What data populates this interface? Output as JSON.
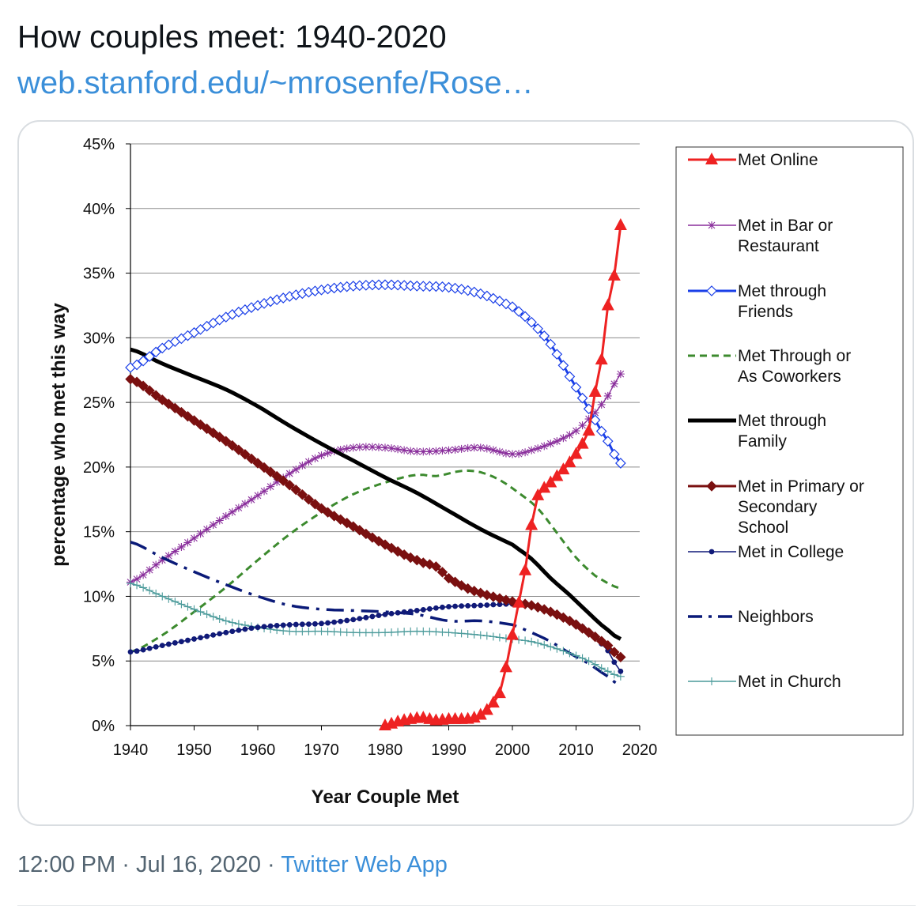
{
  "tweet": {
    "text": "How couples meet: 1940-2020",
    "link_text": "web.stanford.edu/~mrosenfe/Rose…",
    "time": "12:00 PM",
    "separator": "·",
    "date": "Jul 16, 2020",
    "source": "Twitter Web App"
  },
  "chart_data": {
    "type": "line",
    "title": "",
    "xlabel": "Year Couple Met",
    "ylabel": "percentage who met this way",
    "xlim": [
      1940,
      2020
    ],
    "ylim": [
      0,
      45
    ],
    "x_ticks": [
      "1940",
      "1950",
      "1960",
      "1970",
      "1980",
      "1990",
      "2000",
      "2010",
      "2020"
    ],
    "y_ticks": [
      "0%",
      "5%",
      "10%",
      "15%",
      "20%",
      "25%",
      "30%",
      "35%",
      "40%",
      "45%"
    ],
    "grid": "horizontal",
    "legend_position": "right",
    "series": [
      {
        "name": "Met Online",
        "color": "#ee2222",
        "style": "solid-triangle",
        "points": [
          [
            1980,
            0
          ],
          [
            1982,
            0.3
          ],
          [
            1984,
            0.5
          ],
          [
            1986,
            0.6
          ],
          [
            1988,
            0.4
          ],
          [
            1990,
            0.5
          ],
          [
            1992,
            0.5
          ],
          [
            1994,
            0.6
          ],
          [
            1996,
            1.2
          ],
          [
            1998,
            2.5
          ],
          [
            1999,
            4.5
          ],
          [
            2000,
            7
          ],
          [
            2001,
            9.5
          ],
          [
            2002,
            12
          ],
          [
            2003,
            15.5
          ],
          [
            2004,
            17.8
          ],
          [
            2006,
            18.8
          ],
          [
            2008,
            19.8
          ],
          [
            2010,
            21
          ],
          [
            2012,
            22.8
          ],
          [
            2013,
            25.8
          ],
          [
            2014,
            28.3
          ],
          [
            2015,
            32.5
          ],
          [
            2016,
            34.8
          ],
          [
            2017,
            38.7
          ]
        ]
      },
      {
        "name": "Met in Bar or Restaurant",
        "color": "#8a2f9c",
        "style": "thin-star",
        "points": [
          [
            1940,
            11.1
          ],
          [
            1945,
            12.8
          ],
          [
            1950,
            14.5
          ],
          [
            1955,
            16.2
          ],
          [
            1960,
            17.8
          ],
          [
            1965,
            19.5
          ],
          [
            1970,
            20.9
          ],
          [
            1975,
            21.5
          ],
          [
            1980,
            21.5
          ],
          [
            1985,
            21.2
          ],
          [
            1990,
            21.3
          ],
          [
            1995,
            21.5
          ],
          [
            2000,
            21.0
          ],
          [
            2003,
            21.3
          ],
          [
            2007,
            22.0
          ],
          [
            2010,
            22.8
          ],
          [
            2013,
            24.2
          ],
          [
            2015,
            25.5
          ],
          [
            2017,
            27.2
          ]
        ]
      },
      {
        "name": "Met through Friends",
        "color": "#1a3fe8",
        "style": "solid-diamond",
        "points": [
          [
            1940,
            27.7
          ],
          [
            1945,
            29.2
          ],
          [
            1950,
            30.4
          ],
          [
            1955,
            31.6
          ],
          [
            1960,
            32.5
          ],
          [
            1965,
            33.2
          ],
          [
            1970,
            33.7
          ],
          [
            1975,
            34.0
          ],
          [
            1980,
            34.1
          ],
          [
            1985,
            34.0
          ],
          [
            1990,
            33.9
          ],
          [
            1995,
            33.4
          ],
          [
            2000,
            32.4
          ],
          [
            2003,
            31.2
          ],
          [
            2006,
            29.5
          ],
          [
            2009,
            27.0
          ],
          [
            2012,
            24.5
          ],
          [
            2015,
            22.0
          ],
          [
            2017,
            20.3
          ]
        ]
      },
      {
        "name": "Met Through or As Coworkers",
        "color": "#3c8a2e",
        "style": "dashed",
        "points": [
          [
            1940,
            5.7
          ],
          [
            1945,
            7.0
          ],
          [
            1950,
            8.8
          ],
          [
            1955,
            10.7
          ],
          [
            1960,
            12.8
          ],
          [
            1965,
            14.8
          ],
          [
            1970,
            16.5
          ],
          [
            1975,
            17.9
          ],
          [
            1980,
            18.8
          ],
          [
            1985,
            19.4
          ],
          [
            1988,
            19.3
          ],
          [
            1992,
            19.7
          ],
          [
            1995,
            19.6
          ],
          [
            1998,
            19.0
          ],
          [
            2001,
            18.0
          ],
          [
            2004,
            16.8
          ],
          [
            2007,
            14.9
          ],
          [
            2010,
            13.0
          ],
          [
            2013,
            11.6
          ],
          [
            2017,
            10.6
          ]
        ]
      },
      {
        "name": "Met through Family",
        "color": "#000000",
        "style": "thick-solid",
        "points": [
          [
            1940,
            29.1
          ],
          [
            1945,
            28.0
          ],
          [
            1950,
            27.0
          ],
          [
            1955,
            26.0
          ],
          [
            1960,
            24.7
          ],
          [
            1965,
            23.2
          ],
          [
            1970,
            21.8
          ],
          [
            1975,
            20.5
          ],
          [
            1980,
            19.2
          ],
          [
            1985,
            18.0
          ],
          [
            1990,
            16.6
          ],
          [
            1995,
            15.2
          ],
          [
            2000,
            14.0
          ],
          [
            2003,
            12.9
          ],
          [
            2006,
            11.4
          ],
          [
            2009,
            10.1
          ],
          [
            2012,
            8.7
          ],
          [
            2015,
            7.4
          ],
          [
            2017,
            6.7
          ]
        ]
      },
      {
        "name": "Met in Primary or Secondary School",
        "color": "#7a1010",
        "style": "solid-diamond",
        "points": [
          [
            1940,
            26.8
          ],
          [
            1945,
            25.2
          ],
          [
            1950,
            23.6
          ],
          [
            1955,
            22.0
          ],
          [
            1960,
            20.3
          ],
          [
            1965,
            18.6
          ],
          [
            1970,
            16.8
          ],
          [
            1975,
            15.4
          ],
          [
            1980,
            14.0
          ],
          [
            1985,
            12.8
          ],
          [
            1988,
            12.3
          ],
          [
            1990,
            11.4
          ],
          [
            1993,
            10.6
          ],
          [
            1996,
            10.1
          ],
          [
            2000,
            9.6
          ],
          [
            2003,
            9.3
          ],
          [
            2006,
            8.8
          ],
          [
            2009,
            8.1
          ],
          [
            2012,
            7.2
          ],
          [
            2015,
            6.2
          ],
          [
            2017,
            5.3
          ]
        ]
      },
      {
        "name": "Met in College",
        "color": "#101a78",
        "style": "thin-dot",
        "points": [
          [
            1940,
            5.7
          ],
          [
            1945,
            6.2
          ],
          [
            1950,
            6.7
          ],
          [
            1955,
            7.2
          ],
          [
            1960,
            7.6
          ],
          [
            1965,
            7.8
          ],
          [
            1970,
            7.9
          ],
          [
            1975,
            8.2
          ],
          [
            1980,
            8.6
          ],
          [
            1985,
            8.9
          ],
          [
            1990,
            9.2
          ],
          [
            1995,
            9.3
          ],
          [
            2000,
            9.4
          ],
          [
            2003,
            9.2
          ],
          [
            2006,
            8.8
          ],
          [
            2009,
            8.2
          ],
          [
            2012,
            7.3
          ],
          [
            2015,
            5.8
          ],
          [
            2017,
            4.2
          ]
        ]
      },
      {
        "name": "Neighbors",
        "color": "#0a1a78",
        "style": "dash-dot",
        "points": [
          [
            1940,
            14.2
          ],
          [
            1945,
            13.0
          ],
          [
            1950,
            11.9
          ],
          [
            1955,
            10.9
          ],
          [
            1960,
            10.0
          ],
          [
            1965,
            9.3
          ],
          [
            1970,
            9.0
          ],
          [
            1975,
            8.9
          ],
          [
            1980,
            8.8
          ],
          [
            1985,
            8.6
          ],
          [
            1990,
            8.1
          ],
          [
            1995,
            8.1
          ],
          [
            2000,
            7.8
          ],
          [
            2003,
            7.2
          ],
          [
            2006,
            6.5
          ],
          [
            2009,
            5.6
          ],
          [
            2012,
            4.8
          ],
          [
            2015,
            3.8
          ],
          [
            2017,
            3.1
          ]
        ]
      },
      {
        "name": "Met in Church",
        "color": "#4a9a9a",
        "style": "thin-plus",
        "points": [
          [
            1940,
            11.0
          ],
          [
            1945,
            10.0
          ],
          [
            1950,
            9.0
          ],
          [
            1955,
            8.1
          ],
          [
            1960,
            7.6
          ],
          [
            1965,
            7.3
          ],
          [
            1970,
            7.3
          ],
          [
            1975,
            7.2
          ],
          [
            1980,
            7.2
          ],
          [
            1985,
            7.3
          ],
          [
            1990,
            7.2
          ],
          [
            1995,
            7.0
          ],
          [
            2000,
            6.7
          ],
          [
            2003,
            6.5
          ],
          [
            2006,
            6.1
          ],
          [
            2009,
            5.6
          ],
          [
            2012,
            5.0
          ],
          [
            2015,
            4.2
          ],
          [
            2017,
            3.8
          ]
        ]
      }
    ],
    "legend": [
      {
        "lines": [
          "Met Online"
        ]
      },
      {
        "lines": [
          "Met in Bar or",
          "Restaurant"
        ]
      },
      {
        "lines": [
          "Met through",
          "Friends"
        ]
      },
      {
        "lines": [
          "Met Through or",
          "As Coworkers"
        ]
      },
      {
        "lines": [
          "Met through",
          "Family"
        ]
      },
      {
        "lines": [
          "Met in Primary or",
          "Secondary",
          "School"
        ]
      },
      {
        "lines": [
          "Met in College"
        ]
      },
      {
        "lines": [
          "Neighbors"
        ]
      },
      {
        "lines": [
          "Met in Church"
        ]
      }
    ]
  }
}
